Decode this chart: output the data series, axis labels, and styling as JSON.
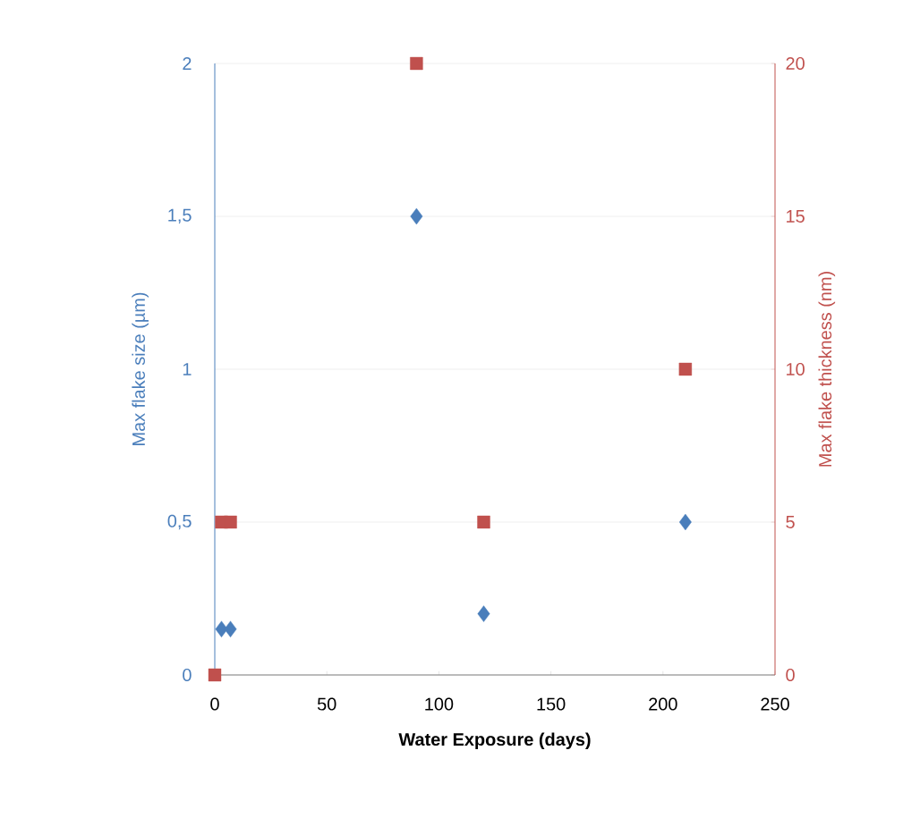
{
  "chart_data": {
    "type": "scatter",
    "xlabel": "Water Exposure (days)",
    "ylabel": "Max flake size (µm)",
    "y2label": "Max flake thickness (nm)",
    "xlim": [
      0,
      250
    ],
    "xticks": [
      0,
      50,
      100,
      150,
      200,
      250
    ],
    "ylim": [
      0,
      2
    ],
    "yticks": [
      0,
      {
        "value": 0.5,
        "label": "0,5"
      },
      1,
      {
        "value": 1.5,
        "label": "1,5"
      },
      2
    ],
    "y2lim": [
      0,
      20
    ],
    "y2ticks": [
      0,
      5,
      10,
      15,
      20
    ],
    "grid": "y",
    "series": [
      {
        "color": "#4a7ebb",
        "marker": "diamond",
        "x": [
          3,
          7,
          90,
          120,
          210
        ],
        "values": [
          0.15,
          0.15,
          1.5,
          0.2,
          0.5
        ]
      },
      {
        "color": "#c0504d",
        "marker": "square",
        "axis": "y2",
        "x": [
          0,
          3,
          7,
          90,
          120,
          210
        ],
        "values": [
          0,
          5,
          5,
          20,
          5,
          10
        ]
      }
    ]
  }
}
